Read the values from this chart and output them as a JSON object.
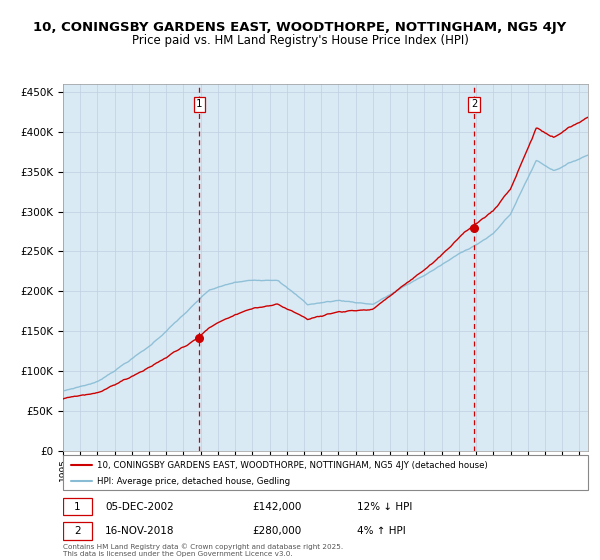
{
  "title_line1": "10, CONINGSBY GARDENS EAST, WOODTHORPE, NOTTINGHAM, NG5 4JY",
  "title_line2": "Price paid vs. HM Land Registry's House Price Index (HPI)",
  "legend_line1": "10, CONINGSBY GARDENS EAST, WOODTHORPE, NOTTINGHAM, NG5 4JY (detached house)",
  "legend_line2": "HPI: Average price, detached house, Gedling",
  "annotation1_label": "1",
  "annotation1_date": "05-DEC-2002",
  "annotation1_price": "£142,000",
  "annotation1_hpi": "12% ↓ HPI",
  "annotation2_label": "2",
  "annotation2_date": "16-NOV-2018",
  "annotation2_price": "£280,000",
  "annotation2_hpi": "4% ↑ HPI",
  "footnote": "Contains HM Land Registry data © Crown copyright and database right 2025.\nThis data is licensed under the Open Government Licence v3.0.",
  "sale1_year": 2002.92,
  "sale1_price": 142000,
  "sale2_year": 2018.88,
  "sale2_price": 280000,
  "hpi_color": "#87bcd4",
  "price_color": "#cc0000",
  "chart_bg_color": "#daeaf5",
  "plot_bg": "#ffffff",
  "annotation_vline_color": "#cc0000",
  "ylim_min": 0,
  "ylim_max": 460000,
  "xlim_start": 1995.0,
  "xlim_end": 2025.5,
  "grid_color": "#c0cfe0",
  "title_fontsize": 9.5,
  "subtitle_fontsize": 8.5
}
